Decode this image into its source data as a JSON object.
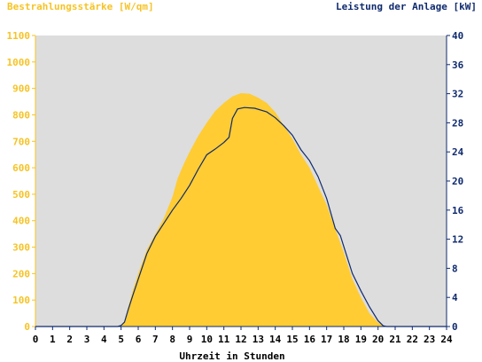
{
  "chart_data": {
    "type": "area",
    "left_axis_label": "Bestrahlungsstärke [W/qm]",
    "right_axis_label": "Leistung der Anlage [kW]",
    "xlabel": "Uhrzeit in Stunden",
    "x_range": [
      0,
      24
    ],
    "y_left_range": [
      0,
      1100
    ],
    "y_right_range": [
      0,
      40
    ],
    "x_ticks": [
      "0",
      "1",
      "2",
      "3",
      "4",
      "5",
      "6",
      "7",
      "8",
      "9",
      "10",
      "11",
      "12",
      "13",
      "14",
      "15",
      "16",
      "17",
      "18",
      "19",
      "20",
      "21",
      "22",
      "23",
      "24"
    ],
    "y_left_ticks": [
      "0",
      "100",
      "200",
      "300",
      "400",
      "500",
      "600",
      "700",
      "800",
      "900",
      "1000",
      "1100"
    ],
    "y_right_ticks": [
      "0",
      "4",
      "8",
      "12",
      "16",
      "20",
      "24",
      "28",
      "32",
      "36",
      "40"
    ],
    "series": [
      {
        "name": "Bestrahlungsstärke [W/qm]",
        "color": "#ffcc33",
        "points": [
          [
            0,
            0
          ],
          [
            4.8,
            0
          ],
          [
            5.0,
            5
          ],
          [
            5.2,
            20
          ],
          [
            5.4,
            70
          ],
          [
            5.7,
            140
          ],
          [
            6.0,
            200
          ],
          [
            6.5,
            290
          ],
          [
            7.0,
            350
          ],
          [
            7.5,
            410
          ],
          [
            8.0,
            490
          ],
          [
            8.3,
            560
          ],
          [
            8.7,
            620
          ],
          [
            9.0,
            660
          ],
          [
            9.5,
            720
          ],
          [
            10.0,
            770
          ],
          [
            10.5,
            815
          ],
          [
            11.0,
            845
          ],
          [
            11.5,
            870
          ],
          [
            12.0,
            882
          ],
          [
            12.5,
            880
          ],
          [
            13.0,
            865
          ],
          [
            13.5,
            845
          ],
          [
            14.0,
            810
          ],
          [
            14.5,
            760
          ],
          [
            15.0,
            710
          ],
          [
            15.5,
            650
          ],
          [
            16.0,
            600
          ],
          [
            16.5,
            530
          ],
          [
            17.0,
            460
          ],
          [
            17.5,
            370
          ],
          [
            18.0,
            280
          ],
          [
            18.5,
            180
          ],
          [
            19.0,
            110
          ],
          [
            19.5,
            50
          ],
          [
            20.0,
            15
          ],
          [
            20.3,
            3
          ],
          [
            20.5,
            0
          ],
          [
            24,
            0
          ]
        ]
      },
      {
        "name": "Leistung der Anlage [kW]",
        "color": "#0f2a6e",
        "points": [
          [
            0,
            0
          ],
          [
            4.8,
            0
          ],
          [
            5.0,
            0.15
          ],
          [
            5.2,
            0.6
          ],
          [
            5.4,
            2.2
          ],
          [
            5.7,
            4.4
          ],
          [
            6.0,
            6.5
          ],
          [
            6.5,
            10.0
          ],
          [
            7.0,
            12.4
          ],
          [
            7.5,
            14.2
          ],
          [
            8.0,
            16.0
          ],
          [
            8.5,
            17.6
          ],
          [
            9.0,
            19.4
          ],
          [
            9.5,
            21.6
          ],
          [
            10.0,
            23.6
          ],
          [
            10.5,
            24.4
          ],
          [
            11.0,
            25.3
          ],
          [
            11.3,
            26.0
          ],
          [
            11.5,
            28.6
          ],
          [
            11.8,
            29.9
          ],
          [
            12.2,
            30.1
          ],
          [
            12.8,
            30.0
          ],
          [
            13.5,
            29.5
          ],
          [
            14.0,
            28.7
          ],
          [
            14.5,
            27.6
          ],
          [
            15.0,
            26.3
          ],
          [
            15.5,
            24.3
          ],
          [
            16.0,
            22.8
          ],
          [
            16.5,
            20.6
          ],
          [
            17.0,
            17.6
          ],
          [
            17.5,
            13.5
          ],
          [
            17.8,
            12.5
          ],
          [
            18.0,
            11.0
          ],
          [
            18.5,
            7.3
          ],
          [
            19.0,
            4.9
          ],
          [
            19.5,
            2.7
          ],
          [
            20.0,
            0.8
          ],
          [
            20.3,
            0.1
          ],
          [
            20.5,
            0
          ],
          [
            24,
            0
          ]
        ]
      }
    ],
    "grid": false,
    "legend": "none"
  }
}
